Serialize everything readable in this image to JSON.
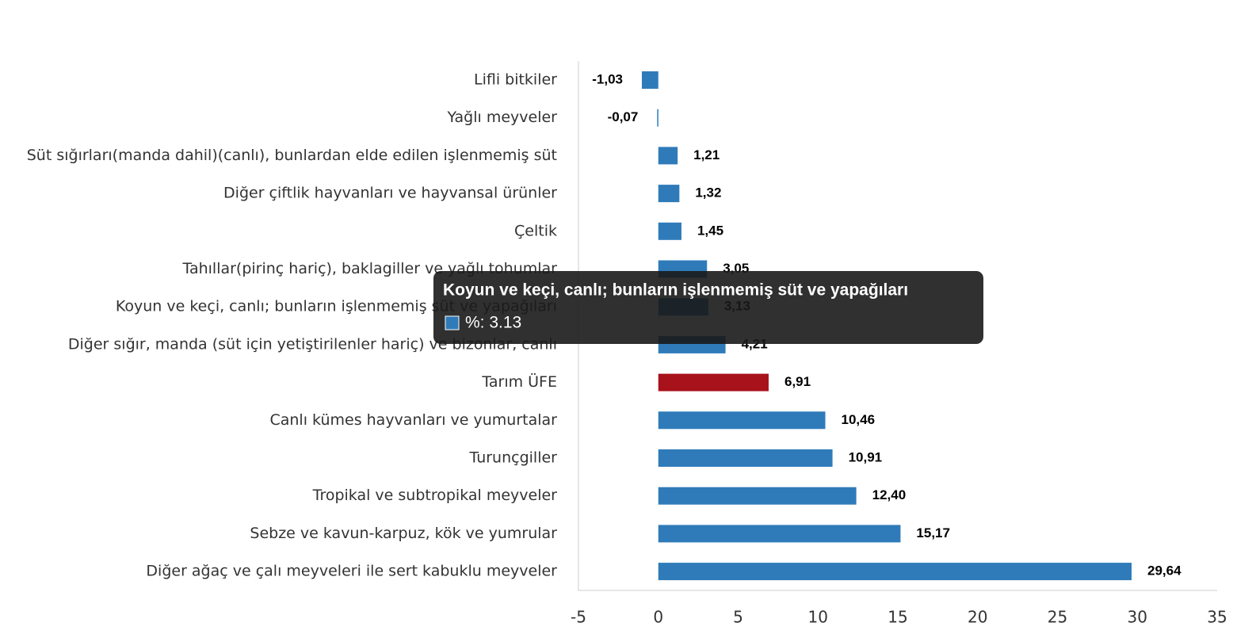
{
  "chart_data": {
    "type": "hbar",
    "categories": [
      "Lifli bitkiler",
      "Yağlı meyveler",
      "Süt sığırları(manda dahil)(canlı), bunlardan elde edilen işlenmemiş süt",
      "Diğer çiftlik hayvanları ve hayvansal ürünler",
      "Çeltik",
      "Tahıllar(pirinç hariç), baklagiller ve yağlı tohumlar",
      "Koyun ve keçi, canlı; bunların işlenmemiş süt ve yapağıları",
      "Diğer sığır, manda (süt için yetiştirilenler hariç) ve bizonlar, canlı",
      "Tarım ÜFE",
      "Canlı kümes hayvanları ve yumurtalar",
      "Turunçgiller",
      "Tropikal ve subtropikal meyveler",
      "Sebze ve kavun-karpuz, kök ve yumrular",
      "Diğer ağaç ve çalı meyveleri ile sert kabuklu meyveler"
    ],
    "values": [
      -1.03,
      -0.07,
      1.21,
      1.32,
      1.45,
      3.05,
      3.13,
      4.21,
      6.91,
      10.46,
      10.91,
      12.4,
      15.17,
      29.64
    ],
    "value_labels": [
      "-1,03",
      "-0,07",
      "1,21",
      "1,32",
      "1,45",
      "3,05",
      "3,13",
      "4,21",
      "6,91",
      "10,46",
      "10,91",
      "12,40",
      "15,17",
      "29,64"
    ],
    "colors": [
      "#2f7bba",
      "#2f7bba",
      "#2f7bba",
      "#2f7bba",
      "#2f7bba",
      "#2f7bba",
      "#2f7bba",
      "#2f7bba",
      "#a8121a",
      "#2f7bba",
      "#2f7bba",
      "#2f7bba",
      "#2f7bba",
      "#2f7bba"
    ],
    "xlim": [
      -5,
      35
    ],
    "xticks": [
      -5,
      0,
      5,
      10,
      15,
      20,
      25,
      30,
      35
    ],
    "tooltip": {
      "title": "Koyun ve keçi, canlı; bunların işlenmemiş süt ve yapağıları",
      "text": "%: 3.13",
      "color": "#2f7bba"
    }
  }
}
